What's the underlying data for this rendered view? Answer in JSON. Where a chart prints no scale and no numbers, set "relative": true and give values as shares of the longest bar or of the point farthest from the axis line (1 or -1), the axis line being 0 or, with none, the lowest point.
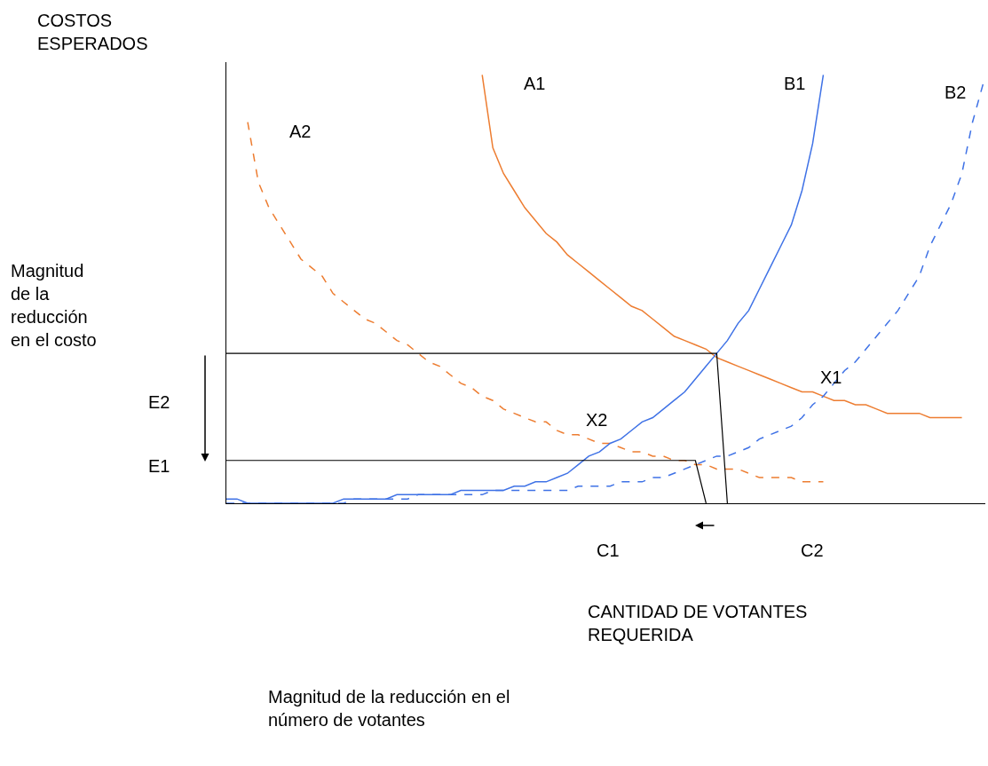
{
  "chart_data": {
    "type": "line",
    "relative": true,
    "marker": "none",
    "ylabel": "COSTOS\nESPERADOS",
    "categories": [
      null,
      null,
      null,
      null,
      null,
      null,
      null,
      null,
      null,
      null,
      null,
      null,
      null,
      null,
      null,
      null,
      null,
      null,
      null,
      null,
      null,
      null,
      null,
      null,
      null,
      null,
      null,
      null,
      null,
      null,
      null,
      null,
      null,
      null,
      null,
      null,
      null,
      null,
      null,
      null,
      null,
      null,
      null,
      null,
      null,
      null,
      null,
      null,
      null,
      null,
      null,
      null,
      null,
      null,
      null,
      null,
      null,
      null,
      null,
      null,
      null,
      null,
      null,
      null,
      null,
      null,
      null,
      null,
      null,
      null,
      null,
      null
    ],
    "series": [
      {
        "name": "A1",
        "color": "#ed7d31",
        "line_style": "solid",
        "values": [
          null,
          null,
          null,
          null,
          null,
          null,
          null,
          null,
          null,
          null,
          null,
          null,
          null,
          null,
          null,
          null,
          null,
          null,
          null,
          null,
          null,
          null,
          null,
          null,
          1.0,
          0.83,
          0.77,
          0.73,
          0.69,
          0.66,
          0.63,
          0.61,
          0.58,
          0.56,
          0.54,
          0.52,
          0.5,
          0.48,
          0.46,
          0.45,
          0.43,
          0.41,
          0.39,
          0.38,
          0.37,
          0.36,
          0.34,
          0.33,
          0.32,
          0.31,
          0.3,
          0.29,
          0.28,
          0.27,
          0.26,
          0.26,
          0.25,
          0.24,
          0.24,
          0.23,
          0.23,
          0.22,
          0.21,
          0.21,
          0.21,
          0.21,
          0.2,
          0.2,
          0.2,
          0.2,
          null,
          null
        ]
      },
      {
        "name": "A2",
        "color": "#ed7d31",
        "line_style": "dashed",
        "values": [
          null,
          null,
          0.89,
          0.75,
          0.69,
          0.65,
          0.61,
          0.57,
          0.55,
          0.53,
          0.49,
          0.47,
          0.45,
          0.43,
          0.42,
          0.4,
          0.38,
          0.37,
          0.35,
          0.33,
          0.32,
          0.3,
          0.28,
          0.27,
          0.25,
          0.24,
          0.22,
          0.21,
          0.2,
          0.19,
          0.19,
          0.17,
          0.16,
          0.16,
          0.15,
          0.14,
          0.14,
          0.13,
          0.12,
          0.12,
          0.11,
          0.11,
          0.1,
          0.1,
          0.09,
          0.09,
          0.08,
          0.08,
          0.08,
          0.07,
          0.06,
          0.06,
          0.06,
          0.06,
          0.05,
          0.05,
          0.05,
          null,
          null,
          null,
          null,
          null,
          null,
          null,
          null,
          null,
          null,
          null,
          null,
          null,
          null,
          null
        ]
      },
      {
        "name": "B1",
        "color": "#3f72e6",
        "line_style": "solid",
        "values": [
          0.01,
          0.01,
          0,
          0,
          0,
          0,
          0,
          0,
          0,
          0,
          0,
          0.01,
          0.01,
          0.01,
          0.01,
          0.01,
          0.02,
          0.02,
          0.02,
          0.02,
          0.02,
          0.02,
          0.03,
          0.03,
          0.03,
          0.03,
          0.03,
          0.04,
          0.04,
          0.05,
          0.05,
          0.06,
          0.07,
          0.09,
          0.11,
          0.12,
          0.14,
          0.15,
          0.17,
          0.19,
          0.2,
          0.22,
          0.24,
          0.26,
          0.29,
          0.32,
          0.35,
          0.38,
          0.42,
          0.45,
          0.5,
          0.55,
          0.6,
          0.65,
          0.73,
          0.84,
          1.0,
          null,
          null,
          null,
          null,
          null,
          null,
          null,
          null,
          null,
          null,
          null,
          null,
          null,
          null,
          null
        ]
      },
      {
        "name": "B2",
        "color": "#3f72e6",
        "line_style": "dashed",
        "values": [
          0,
          0,
          0,
          0,
          0,
          0,
          0,
          0,
          0,
          0,
          0,
          0,
          0.01,
          0.01,
          0.01,
          0.01,
          0.01,
          0.01,
          0.02,
          0.02,
          0.02,
          0.02,
          0.02,
          0.02,
          0.02,
          0.03,
          0.03,
          0.03,
          0.03,
          0.03,
          0.03,
          0.03,
          0.03,
          0.04,
          0.04,
          0.04,
          0.04,
          0.05,
          0.05,
          0.05,
          0.06,
          0.06,
          0.07,
          0.08,
          0.09,
          0.1,
          0.11,
          0.11,
          0.12,
          0.13,
          0.15,
          0.16,
          0.17,
          0.18,
          0.2,
          0.23,
          0.25,
          0.28,
          0.31,
          0.33,
          0.36,
          0.39,
          0.42,
          0.45,
          0.49,
          0.53,
          0.6,
          0.65,
          0.7,
          0.77,
          0.89,
          0.98
        ]
      },
      {
        "color": "#000000",
        "line_style": "solid",
        "values": [
          0.35,
          0.35,
          0.35,
          0.35,
          0.35,
          0.35,
          0.35,
          0.35,
          0.35,
          0.35,
          0.35,
          0.35,
          0.35,
          0.35,
          0.35,
          0.35,
          0.35,
          0.35,
          0.35,
          0.35,
          0.35,
          0.35,
          0.35,
          0.35,
          0.35,
          0.35,
          0.35,
          0.35,
          0.35,
          0.35,
          0.35,
          0.35,
          0.35,
          0.35,
          0.35,
          0.35,
          0.35,
          0.35,
          0.35,
          0.35,
          0.35,
          0.35,
          0.35,
          0.35,
          0.35,
          0.35,
          0.35,
          0,
          null,
          null,
          null,
          null,
          null,
          null,
          null,
          null,
          null,
          null,
          null,
          null,
          null,
          null,
          null,
          null,
          null,
          null,
          null,
          null,
          null,
          null,
          null,
          null
        ]
      },
      {
        "color": "#000000",
        "line_style": "solid",
        "values": [
          0.1,
          0.1,
          0.1,
          0.1,
          0.1,
          0.1,
          0.1,
          0.1,
          0.1,
          0.1,
          0.1,
          0.1,
          0.1,
          0.1,
          0.1,
          0.1,
          0.1,
          0.1,
          0.1,
          0.1,
          0.1,
          0.1,
          0.1,
          0.1,
          0.1,
          0.1,
          0.1,
          0.1,
          0.1,
          0.1,
          0.1,
          0.1,
          0.1,
          0.1,
          0.1,
          0.1,
          0.1,
          0.1,
          0.1,
          0.1,
          0.1,
          0.1,
          0.1,
          0.1,
          0.1,
          0,
          null,
          null,
          null,
          null,
          null,
          null,
          null,
          null,
          null,
          null,
          null,
          null,
          null,
          null,
          null,
          null,
          null,
          null,
          null,
          null,
          null,
          null,
          null,
          null,
          null,
          null
        ]
      }
    ],
    "annotations": [
      "Magnitud\nde la\nreducción\nen el costo",
      "E2",
      "E1",
      "C1",
      "C2",
      "X1",
      "X2",
      "CANTIDAD DE VOTANTES\nREQUERIDA",
      "Magnitud de la reducción en el\nnúmero de votantes"
    ]
  }
}
